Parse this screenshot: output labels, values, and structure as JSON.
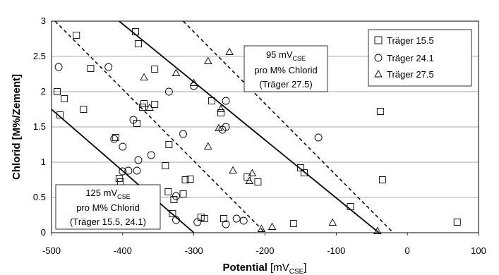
{
  "chart_data": {
    "type": "scatter",
    "xlabel": {
      "main": "Potential",
      "unit_pre": "[mV",
      "unit_sub": "CSE",
      "unit_post": "]"
    },
    "ylabel": "Chlorid [M%/Zement]",
    "xlim": [
      -500,
      100
    ],
    "ylim": [
      0,
      3
    ],
    "xticks": [
      -500,
      -400,
      -300,
      -200,
      -100,
      0,
      100
    ],
    "yticks": [
      0,
      0.5,
      1,
      1.5,
      2,
      2.5,
      3
    ],
    "xtick_labels": [
      "-500",
      "-400",
      "-300",
      "-200",
      "-100",
      "0",
      "100"
    ],
    "ytick_labels": [
      "0",
      "0.5",
      "1",
      "1.5",
      "2",
      "2.5",
      "3"
    ],
    "grid": {
      "horizontal": true,
      "vertical": false
    },
    "legend_position": "top-right",
    "series": [
      {
        "name": "Träger 15.5",
        "marker": "square",
        "points": [
          [
            -492,
            2.0
          ],
          [
            -488,
            1.67
          ],
          [
            -482,
            1.9
          ],
          [
            -465,
            2.8
          ],
          [
            -445,
            2.33
          ],
          [
            -455,
            1.75
          ],
          [
            -410,
            1.35
          ],
          [
            -405,
            0.77
          ],
          [
            -403,
            0.72
          ],
          [
            -382,
            2.85
          ],
          [
            -378,
            2.68
          ],
          [
            -370,
            1.83
          ],
          [
            -372,
            1.78
          ],
          [
            -355,
            2.32
          ],
          [
            -355,
            1.82
          ],
          [
            -380,
            1.55
          ],
          [
            -335,
            1.25
          ],
          [
            -340,
            0.95
          ],
          [
            -336,
            0.58
          ],
          [
            -330,
            0.27
          ],
          [
            -328,
            0.47
          ],
          [
            -315,
            0.55
          ],
          [
            -312,
            0.75
          ],
          [
            -305,
            0.76
          ],
          [
            -290,
            0.22
          ],
          [
            -285,
            0.2
          ],
          [
            -275,
            1.87
          ],
          [
            -262,
            1.7
          ],
          [
            -258,
            0.2
          ],
          [
            -225,
            0.79
          ],
          [
            -210,
            0.72
          ],
          [
            -150,
            0.92
          ],
          [
            -145,
            0.85
          ],
          [
            -160,
            0.13
          ],
          [
            -80,
            0.37
          ],
          [
            -38,
            1.72
          ],
          [
            -35,
            0.75
          ],
          [
            70,
            0.15
          ]
        ]
      },
      {
        "name": "Träger 24.1",
        "marker": "circle",
        "points": [
          [
            -490,
            2.35
          ],
          [
            -420,
            2.35
          ],
          [
            -412,
            1.33
          ],
          [
            -400,
            0.87
          ],
          [
            -400,
            1.22
          ],
          [
            -392,
            0.88
          ],
          [
            -385,
            1.6
          ],
          [
            -380,
            0.88
          ],
          [
            -378,
            1.03
          ],
          [
            -360,
            1.1
          ],
          [
            -335,
            2.0
          ],
          [
            -325,
            0.52
          ],
          [
            -325,
            0.18
          ],
          [
            -315,
            1.4
          ],
          [
            -300,
            2.08
          ],
          [
            -295,
            0.15
          ],
          [
            -255,
            0.12
          ],
          [
            -260,
            1.46
          ],
          [
            -255,
            1.5
          ],
          [
            -255,
            1.87
          ],
          [
            -240,
            0.2
          ],
          [
            -230,
            0.17
          ],
          [
            -125,
            1.35
          ]
        ]
      },
      {
        "name": "Träger 27.5",
        "marker": "triangle",
        "points": [
          [
            -370,
            2.2
          ],
          [
            -362,
            1.77
          ],
          [
            -325,
            2.26
          ],
          [
            -300,
            2.12
          ],
          [
            -280,
            1.22
          ],
          [
            -280,
            2.43
          ],
          [
            -262,
            1.75
          ],
          [
            -265,
            1.48
          ],
          [
            -250,
            2.56
          ],
          [
            -245,
            0.88
          ],
          [
            -218,
            0.84
          ],
          [
            -222,
            0.73
          ],
          [
            -205,
            0.05
          ],
          [
            -190,
            0.08
          ],
          [
            -105,
            0.14
          ],
          [
            -42,
            0.02
          ]
        ]
      }
    ],
    "lines": [
      {
        "style": "solid",
        "from": [
          -500,
          1.75
        ],
        "to": [
          -300,
          0
        ]
      },
      {
        "style": "dashed",
        "from": [
          -495,
          3.0
        ],
        "to": [
          -200,
          0
        ]
      },
      {
        "style": "solid",
        "from": [
          -405,
          3.0
        ],
        "to": [
          -40,
          0
        ]
      },
      {
        "style": "dashed",
        "from": [
          -315,
          3.0
        ],
        "to": [
          -20,
          0
        ]
      }
    ],
    "annotations": [
      {
        "id": "ann95",
        "lines": [
          {
            "main": "95 mV",
            "sub": "CSE"
          },
          {
            "main": "pro M% Chlorid"
          },
          {
            "main": "(Träger 27.5)"
          }
        ]
      },
      {
        "id": "ann125",
        "lines": [
          {
            "main": "125 mV",
            "sub": "CSE"
          },
          {
            "main": "pro M% Chlorid"
          },
          {
            "main": "(Träger 15.5, 24.1)"
          }
        ]
      }
    ]
  }
}
